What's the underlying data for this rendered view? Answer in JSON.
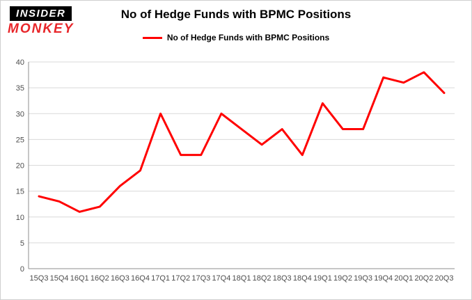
{
  "logo": {
    "line1": "INSIDER",
    "line2": "MONKEY"
  },
  "chart_data": {
    "type": "line",
    "title": "No of Hedge Funds with BPMC Positions",
    "legend": "No of Hedge Funds with BPMC Positions",
    "categories": [
      "15Q3",
      "15Q4",
      "16Q1",
      "16Q2",
      "16Q3",
      "16Q4",
      "17Q1",
      "17Q2",
      "17Q3",
      "17Q4",
      "18Q1",
      "18Q2",
      "18Q3",
      "18Q4",
      "19Q1",
      "19Q2",
      "19Q3",
      "19Q4",
      "20Q1",
      "20Q2",
      "20Q3"
    ],
    "values": [
      14,
      13,
      11,
      12,
      16,
      19,
      30,
      22,
      22,
      30,
      27,
      24,
      27,
      22,
      32,
      27,
      27,
      37,
      36,
      38,
      34
    ],
    "xlabel": "",
    "ylabel": "",
    "ylim": [
      0,
      40
    ],
    "yticks": [
      0,
      5,
      10,
      15,
      20,
      25,
      30,
      35,
      40
    ],
    "grid": true,
    "legend_position": "top",
    "line_color": "#ff0000"
  },
  "colors": {
    "line": "#ff0000",
    "logo_red": "#e8262a",
    "grid": "#d9d9d9",
    "axis": "#8c8c8c",
    "text": "#4d4d4d"
  }
}
